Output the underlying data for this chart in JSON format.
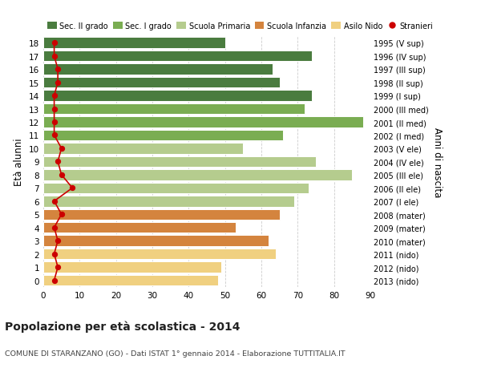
{
  "ages": [
    18,
    17,
    16,
    15,
    14,
    13,
    12,
    11,
    10,
    9,
    8,
    7,
    6,
    5,
    4,
    3,
    2,
    1,
    0
  ],
  "right_labels": [
    "1995 (V sup)",
    "1996 (IV sup)",
    "1997 (III sup)",
    "1998 (II sup)",
    "1999 (I sup)",
    "2000 (III med)",
    "2001 (II med)",
    "2002 (I med)",
    "2003 (V ele)",
    "2004 (IV ele)",
    "2005 (III ele)",
    "2006 (II ele)",
    "2007 (I ele)",
    "2008 (mater)",
    "2009 (mater)",
    "2010 (mater)",
    "2011 (nido)",
    "2012 (nido)",
    "2013 (nido)"
  ],
  "bar_values": [
    50,
    74,
    63,
    65,
    74,
    72,
    88,
    66,
    55,
    75,
    85,
    73,
    69,
    65,
    53,
    62,
    64,
    49,
    48
  ],
  "bar_colors": [
    "#4a7c3f",
    "#4a7c3f",
    "#4a7c3f",
    "#4a7c3f",
    "#4a7c3f",
    "#7aad52",
    "#7aad52",
    "#7aad52",
    "#b5cc8e",
    "#b5cc8e",
    "#b5cc8e",
    "#b5cc8e",
    "#b5cc8e",
    "#d4843e",
    "#d4843e",
    "#d4843e",
    "#f0d080",
    "#f0d080",
    "#f0d080"
  ],
  "stranieri_values": [
    3,
    3,
    4,
    4,
    3,
    3,
    3,
    3,
    5,
    4,
    5,
    8,
    3,
    5,
    3,
    4,
    3,
    4,
    3
  ],
  "stranieri_color": "#cc0000",
  "legend_labels": [
    "Sec. II grado",
    "Sec. I grado",
    "Scuola Primaria",
    "Scuola Infanzia",
    "Asilo Nido",
    "Stranieri"
  ],
  "legend_colors": [
    "#4a7c3f",
    "#7aad52",
    "#b5cc8e",
    "#d4843e",
    "#f0d080",
    "#cc0000"
  ],
  "title": "Popolazione per età scolastica - 2014",
  "subtitle": "COMUNE DI STARANZANO (GO) - Dati ISTAT 1° gennaio 2014 - Elaborazione TUTTITALIA.IT",
  "ylabel_left": "Età alunni",
  "ylabel_right": "Anni di nascita",
  "xlim": [
    0,
    90
  ],
  "xticks": [
    0,
    10,
    20,
    30,
    40,
    50,
    60,
    70,
    80,
    90
  ],
  "bg_color": "#ffffff",
  "bar_height": 0.82,
  "grid_color": "#cccccc"
}
